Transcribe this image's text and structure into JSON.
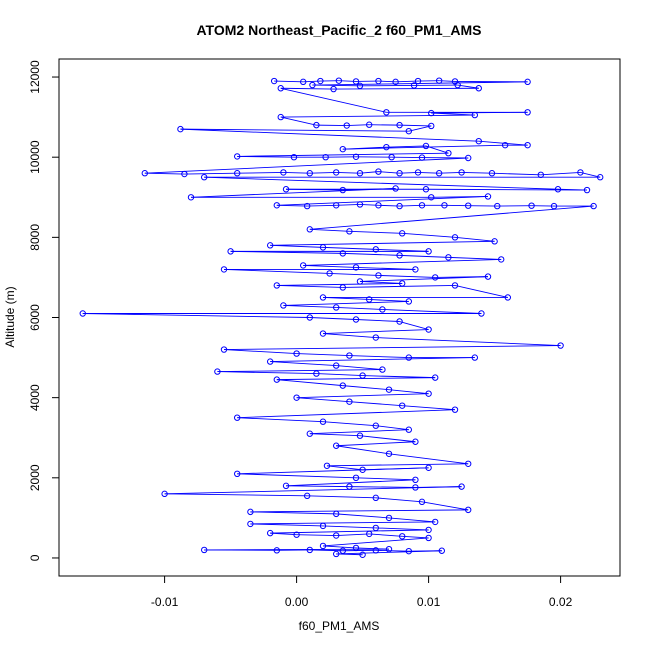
{
  "chart_data": {
    "type": "scatter",
    "title": "ATOM2 Northeast_Pacific_2 f60_PM1_AMS",
    "xlabel": "f60_PM1_AMS",
    "ylabel": "Altitude (m)",
    "xlim": [
      -0.018,
      0.0245
    ],
    "ylim": [
      -450,
      12450
    ],
    "x_ticks": [
      -0.01,
      0.0,
      0.01,
      0.02
    ],
    "x_tick_labels": [
      "-0.01",
      "0.00",
      "0.01",
      "0.02"
    ],
    "y_ticks": [
      0,
      2000,
      4000,
      6000,
      8000,
      10000,
      12000
    ],
    "y_tick_labels": [
      "0",
      "2000",
      "4000",
      "6000",
      "8000",
      "10000",
      "12000"
    ],
    "grid": false,
    "legend": "none",
    "point_color": "#0000ff",
    "line_color": "#0000ff",
    "series": [
      {
        "points": [
          [
            -0.0017,
            11900
          ],
          [
            0.0005,
            11880
          ],
          [
            0.0018,
            11900
          ],
          [
            0.0032,
            11910
          ],
          [
            0.0045,
            11890
          ],
          [
            0.0062,
            11900
          ],
          [
            0.0075,
            11880
          ],
          [
            0.0092,
            11900
          ],
          [
            0.0108,
            11910
          ],
          [
            0.012,
            11890
          ],
          [
            0.0175,
            11880
          ],
          [
            0.0012,
            11800
          ],
          [
            0.0048,
            11780
          ],
          [
            0.0089,
            11790
          ],
          [
            0.0122,
            11800
          ],
          [
            0.0138,
            11720
          ],
          [
            0.0028,
            11700
          ],
          [
            -0.0012,
            11720
          ],
          [
            0.0068,
            11120
          ],
          [
            0.0175,
            11120
          ],
          [
            0.0102,
            11100
          ],
          [
            0.0135,
            11050
          ],
          [
            -0.0012,
            11000
          ],
          [
            0.0015,
            10800
          ],
          [
            0.0038,
            10790
          ],
          [
            0.0055,
            10810
          ],
          [
            0.0078,
            10800
          ],
          [
            0.0102,
            10780
          ],
          [
            0.0085,
            10650
          ],
          [
            -0.0088,
            10700
          ],
          [
            0.0138,
            10400
          ],
          [
            0.0175,
            10300
          ],
          [
            0.0158,
            10300
          ],
          [
            0.0035,
            10200
          ],
          [
            0.0068,
            10250
          ],
          [
            0.0098,
            10280
          ],
          [
            0.0115,
            10100
          ],
          [
            -0.0045,
            10020
          ],
          [
            -0.0002,
            10000
          ],
          [
            0.0022,
            10000
          ],
          [
            0.0045,
            10010
          ],
          [
            0.0072,
            10000
          ],
          [
            0.0095,
            9990
          ],
          [
            0.013,
            9980
          ],
          [
            -0.0115,
            9600
          ],
          [
            -0.0085,
            9580
          ],
          [
            -0.0045,
            9600
          ],
          [
            -0.001,
            9620
          ],
          [
            0.001,
            9600
          ],
          [
            0.003,
            9620
          ],
          [
            0.0048,
            9600
          ],
          [
            0.0062,
            9640
          ],
          [
            0.0078,
            9600
          ],
          [
            0.0092,
            9620
          ],
          [
            0.0108,
            9600
          ],
          [
            0.0125,
            9620
          ],
          [
            0.0148,
            9600
          ],
          [
            0.0185,
            9560
          ],
          [
            0.0215,
            9620
          ],
          [
            0.023,
            9500
          ],
          [
            -0.007,
            9500
          ],
          [
            0.0198,
            9200
          ],
          [
            0.022,
            9180
          ],
          [
            0.0098,
            9200
          ],
          [
            -0.0008,
            9200
          ],
          [
            0.0035,
            9180
          ],
          [
            0.0075,
            9220
          ],
          [
            -0.008,
            9000
          ],
          [
            0.0102,
            9000
          ],
          [
            0.0145,
            9020
          ],
          [
            -0.0015,
            8800
          ],
          [
            0.0008,
            8780
          ],
          [
            0.003,
            8800
          ],
          [
            0.0048,
            8820
          ],
          [
            0.0062,
            8800
          ],
          [
            0.0078,
            8780
          ],
          [
            0.0095,
            8800
          ],
          [
            0.0112,
            8800
          ],
          [
            0.013,
            8790
          ],
          [
            0.0152,
            8780
          ],
          [
            0.0178,
            8790
          ],
          [
            0.0195,
            8780
          ],
          [
            0.0225,
            8780
          ],
          [
            0.001,
            8200
          ],
          [
            0.004,
            8150
          ],
          [
            0.008,
            8100
          ],
          [
            0.012,
            8000
          ],
          [
            0.015,
            7900
          ],
          [
            -0.002,
            7800
          ],
          [
            0.002,
            7750
          ],
          [
            0.006,
            7700
          ],
          [
            0.01,
            7650
          ],
          [
            -0.005,
            7650
          ],
          [
            0.0035,
            7600
          ],
          [
            0.0078,
            7550
          ],
          [
            0.0115,
            7500
          ],
          [
            0.0155,
            7450
          ],
          [
            0.0005,
            7300
          ],
          [
            0.0045,
            7250
          ],
          [
            0.009,
            7200
          ],
          [
            -0.0055,
            7200
          ],
          [
            0.0025,
            7100
          ],
          [
            0.0062,
            7050
          ],
          [
            0.0105,
            7000
          ],
          [
            0.0145,
            7020
          ],
          [
            0.0048,
            6900
          ],
          [
            0.008,
            6850
          ],
          [
            -0.0015,
            6800
          ],
          [
            0.0035,
            6750
          ],
          [
            0.012,
            6800
          ],
          [
            0.016,
            6500
          ],
          [
            0.002,
            6500
          ],
          [
            0.0055,
            6450
          ],
          [
            0.0085,
            6400
          ],
          [
            -0.001,
            6300
          ],
          [
            0.003,
            6250
          ],
          [
            0.0065,
            6200
          ],
          [
            0.014,
            6100
          ],
          [
            -0.0162,
            6100
          ],
          [
            0.001,
            6000
          ],
          [
            0.0045,
            5950
          ],
          [
            0.0078,
            5900
          ],
          [
            0.01,
            5700
          ],
          [
            0.002,
            5600
          ],
          [
            0.006,
            5500
          ],
          [
            0.02,
            5300
          ],
          [
            -0.0055,
            5200
          ],
          [
            0.0,
            5100
          ],
          [
            0.004,
            5050
          ],
          [
            0.0085,
            5000
          ],
          [
            0.0135,
            5000
          ],
          [
            -0.002,
            4900
          ],
          [
            0.003,
            4800
          ],
          [
            0.0065,
            4700
          ],
          [
            -0.006,
            4650
          ],
          [
            0.0015,
            4600
          ],
          [
            0.005,
            4550
          ],
          [
            0.0105,
            4500
          ],
          [
            -0.0015,
            4450
          ],
          [
            0.0035,
            4300
          ],
          [
            0.007,
            4200
          ],
          [
            0.01,
            4100
          ],
          [
            0.0,
            4000
          ],
          [
            0.004,
            3900
          ],
          [
            0.008,
            3800
          ],
          [
            0.012,
            3700
          ],
          [
            -0.0045,
            3500
          ],
          [
            0.002,
            3400
          ],
          [
            0.006,
            3300
          ],
          [
            0.0085,
            3200
          ],
          [
            0.001,
            3100
          ],
          [
            0.0048,
            3050
          ],
          [
            0.009,
            2900
          ],
          [
            0.003,
            2800
          ],
          [
            0.007,
            2600
          ],
          [
            0.013,
            2350
          ],
          [
            0.0023,
            2300
          ],
          [
            0.005,
            2200
          ],
          [
            0.01,
            2250
          ],
          [
            -0.0045,
            2100
          ],
          [
            0.0045,
            2000
          ],
          [
            0.009,
            1950
          ],
          [
            -0.0008,
            1800
          ],
          [
            0.004,
            1780
          ],
          [
            0.009,
            1760
          ],
          [
            0.0125,
            1780
          ],
          [
            -0.01,
            1600
          ],
          [
            0.0008,
            1550
          ],
          [
            0.006,
            1500
          ],
          [
            0.0095,
            1400
          ],
          [
            0.013,
            1200
          ],
          [
            -0.0035,
            1150
          ],
          [
            0.003,
            1100
          ],
          [
            0.007,
            1000
          ],
          [
            0.0105,
            900
          ],
          [
            -0.0035,
            850
          ],
          [
            0.002,
            800
          ],
          [
            0.006,
            750
          ],
          [
            0.01,
            700
          ],
          [
            -0.002,
            620
          ],
          [
            0.0,
            580
          ],
          [
            0.003,
            560
          ],
          [
            0.0055,
            600
          ],
          [
            0.008,
            540
          ],
          [
            0.01,
            500
          ],
          [
            0.002,
            300
          ],
          [
            0.0045,
            250
          ],
          [
            0.007,
            220
          ],
          [
            -0.007,
            200
          ],
          [
            -0.0015,
            190
          ],
          [
            0.001,
            200
          ],
          [
            0.0035,
            180
          ],
          [
            0.006,
            190
          ],
          [
            0.0085,
            170
          ],
          [
            0.011,
            180
          ],
          [
            0.003,
            100
          ],
          [
            0.005,
            80
          ]
        ]
      }
    ]
  }
}
